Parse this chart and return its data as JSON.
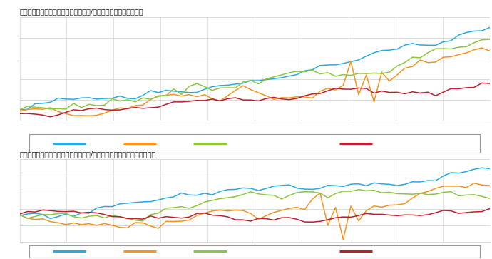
{
  "title1": "不動産価格指数（商業用不動産・総合/用途別・季節調整値）全国",
  "title2": "不動産価格指数（商業用不動産・総合/用途別・季節調整値）三大都市圏",
  "colors": [
    "#29ABE2",
    "#F7941D",
    "#8DC63F",
    "#BE1E2D"
  ],
  "background": "#FFFFFF",
  "grid_color": "#CCCCCC",
  "title_color": "#222222",
  "legend_border": "#888888",
  "legend_bg": "#FFFFFF"
}
